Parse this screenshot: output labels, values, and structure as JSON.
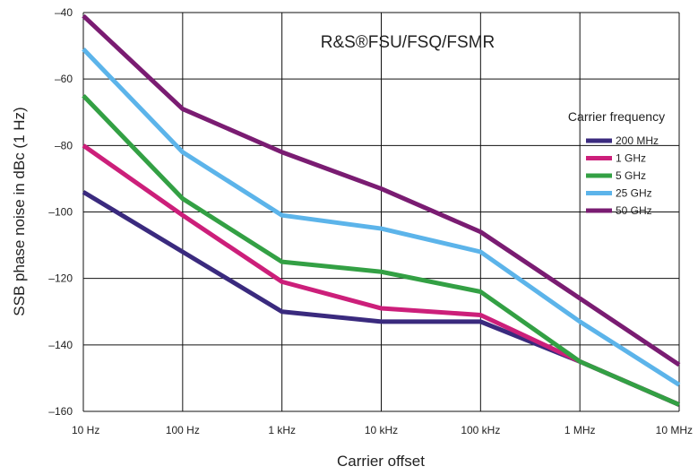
{
  "chart_data": {
    "type": "line",
    "title": "R&S®FSU/FSQ/FSMR",
    "xlabel": "Carrier offset",
    "ylabel": "SSB phase noise in dBc (1 Hz)",
    "x_scale": "log",
    "categories": [
      "10 Hz",
      "100 Hz",
      "1 kHz",
      "10 kHz",
      "100 kHz",
      "1 MHz",
      "10 MHz"
    ],
    "y_ticks": [
      -40,
      -60,
      -80,
      -100,
      -120,
      -140,
      -160
    ],
    "ylim": [
      -160,
      -40
    ],
    "grid": true,
    "legend_title": "Carrier frequency",
    "legend_position": "right",
    "series": [
      {
        "name": "200 MHz",
        "color": "#3a2a7e",
        "values": [
          -94,
          -112,
          -130,
          -133,
          -133,
          -145,
          -158
        ]
      },
      {
        "name": "1 GHz",
        "color": "#cc1f7a",
        "values": [
          -80,
          -101,
          -121,
          -129,
          -131,
          -145,
          -158
        ]
      },
      {
        "name": "5 GHz",
        "color": "#33a044",
        "values": [
          -65,
          -96,
          -115,
          -118,
          -124,
          -145,
          -158
        ]
      },
      {
        "name": "25 GHz",
        "color": "#5cb4ea",
        "values": [
          -51,
          -82,
          -101,
          -105,
          -112,
          -133,
          -152
        ]
      },
      {
        "name": "50 GHz",
        "color": "#7a1c72",
        "values": [
          -41,
          -69,
          -82,
          -93,
          -106,
          -126,
          -146
        ]
      }
    ]
  }
}
